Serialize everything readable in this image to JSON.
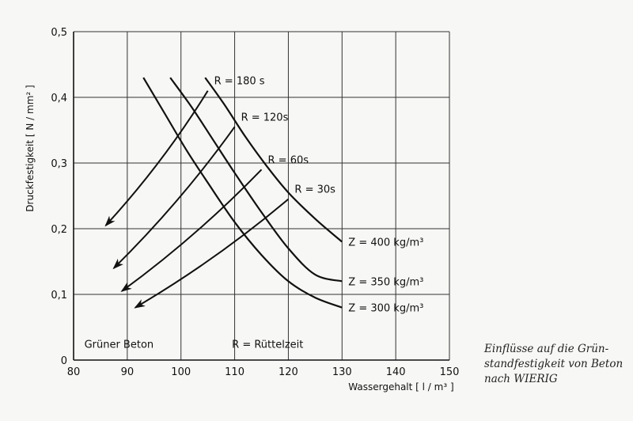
{
  "chart_data": {
    "type": "line",
    "xlabel": "Wassergehalt [ l / m³ ]",
    "ylabel": "Druckfestigkeit [ N / mm² ]",
    "xlim": [
      80,
      150
    ],
    "ylim": [
      0,
      0.5
    ],
    "x_ticks": [
      "80",
      "90",
      "100",
      "110",
      "120",
      "130",
      "140",
      "150"
    ],
    "y_ticks": [
      "0",
      "0,1",
      "0,2",
      "0,3",
      "0,4",
      "0,5"
    ],
    "grid": true,
    "curves": [
      {
        "label": "Z = 400 kg/m³",
        "x": [
          104.5,
          108,
          112,
          116,
          120,
          125,
          130
        ],
        "y": [
          0.43,
          0.39,
          0.34,
          0.295,
          0.255,
          0.215,
          0.18
        ]
      },
      {
        "label": "Z = 350 kg/m³",
        "x": [
          98,
          102,
          106,
          110,
          115,
          120,
          125,
          130
        ],
        "y": [
          0.43,
          0.385,
          0.335,
          0.285,
          0.225,
          0.17,
          0.13,
          0.12
        ]
      },
      {
        "label": "Z = 300 kg/m³",
        "x": [
          93,
          97,
          101,
          105,
          110,
          115,
          120,
          125,
          130
        ],
        "y": [
          0.43,
          0.375,
          0.32,
          0.27,
          0.21,
          0.16,
          0.12,
          0.095,
          0.08
        ]
      }
    ],
    "arrows": [
      {
        "label": "R = 180 s",
        "from": [
          105,
          0.41
        ],
        "to": [
          86,
          0.205
        ]
      },
      {
        "label": "R = 120s",
        "from": [
          110,
          0.355
        ],
        "to": [
          87.5,
          0.14
        ]
      },
      {
        "label": "R = 60s",
        "from": [
          115,
          0.29
        ],
        "to": [
          89,
          0.105
        ]
      },
      {
        "label": "R = 30s",
        "from": [
          120,
          0.245
        ],
        "to": [
          91.5,
          0.08
        ]
      }
    ],
    "annotations": [
      "Grüner Beton",
      "R = Rüttelzeit"
    ]
  },
  "caption": {
    "lines": [
      "Einflüsse auf die Grün-",
      "standfestigkeit von Beton",
      "nach WIERIG"
    ]
  },
  "colors": {
    "ink": "#111111",
    "grid": "#333333",
    "background": "#f7f7f5"
  }
}
